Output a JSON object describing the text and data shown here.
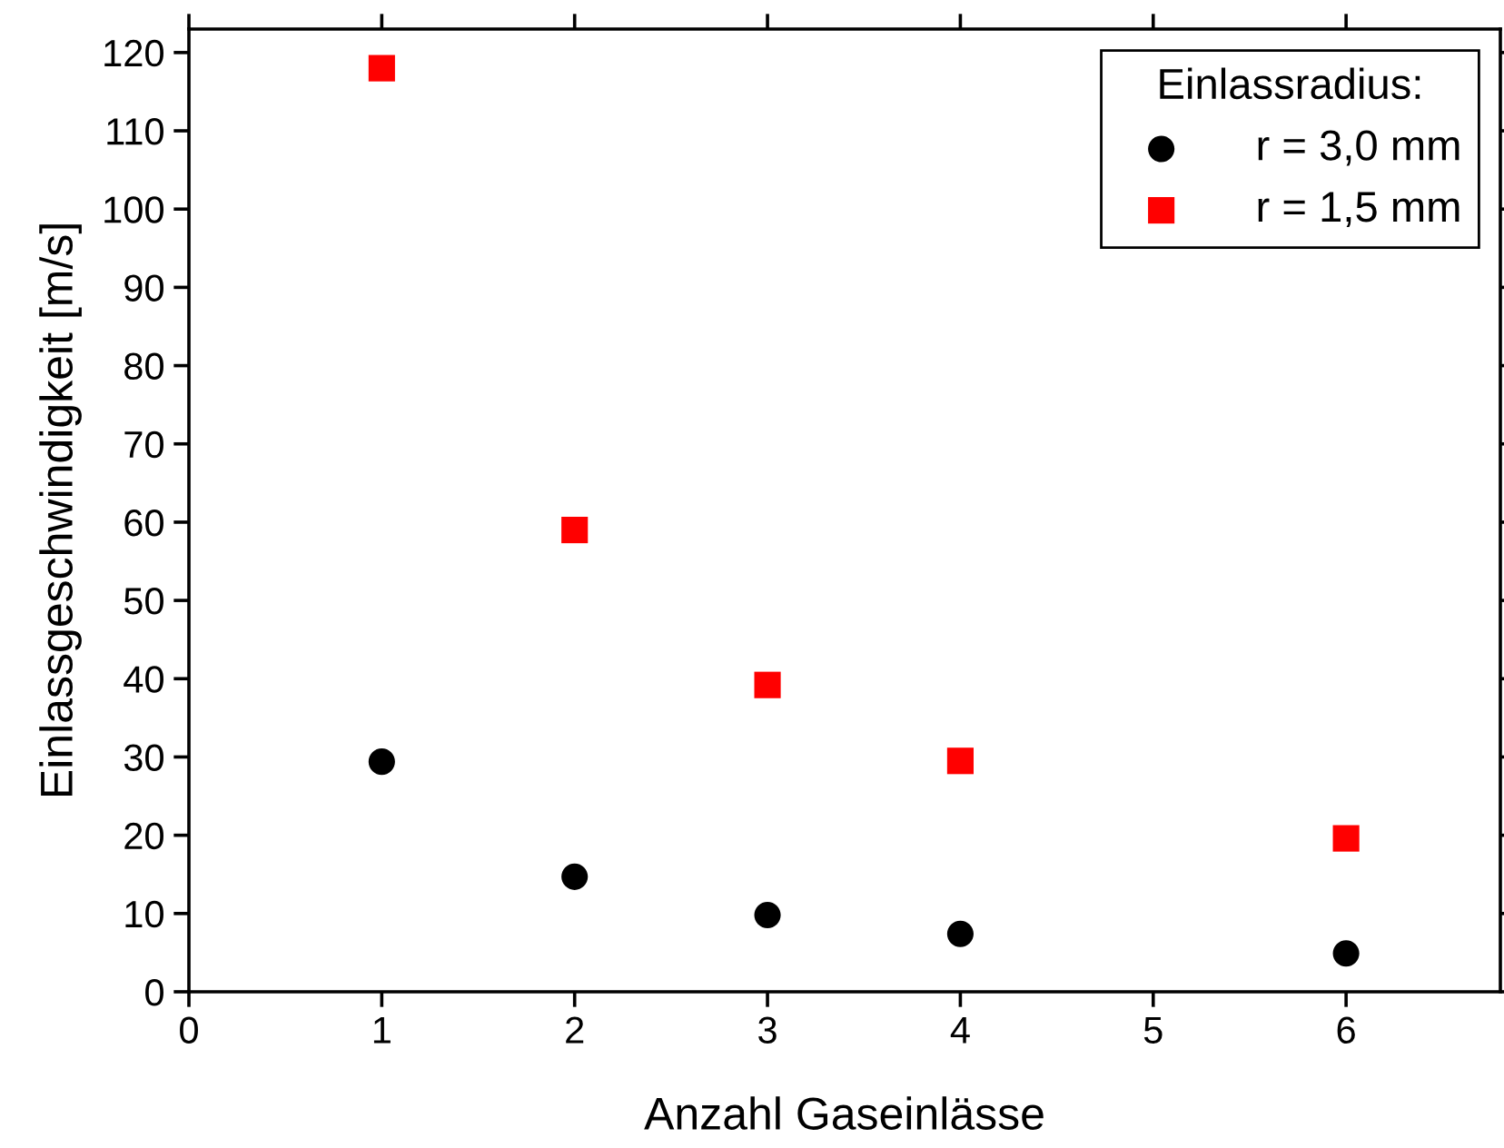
{
  "chart_data": {
    "type": "scatter",
    "xlabel": "Anzahl Gaseinlässe",
    "ylabel": "Einlassgeschwindigkeit [m/s]",
    "legend_title": "Einlassradius:",
    "legend": "top right",
    "grid": false,
    "x": [
      1,
      2,
      3,
      4,
      6
    ],
    "series": [
      {
        "name": "r = 3,0 mm",
        "color": "#000000",
        "marker": "circle",
        "values": [
          29.4,
          14.7,
          9.8,
          7.4,
          4.9
        ]
      },
      {
        "name": "r = 1,5 mm",
        "color": "#ff0000",
        "marker": "square",
        "values": [
          118,
          59,
          39.2,
          29.5,
          19.6
        ]
      }
    ],
    "xlim": [
      0,
      6.8
    ],
    "xticks": [
      0,
      1,
      2,
      3,
      4,
      5,
      6
    ],
    "ylim": [
      0,
      123
    ],
    "yticks": [
      0,
      10,
      20,
      30,
      40,
      50,
      60,
      70,
      80,
      90,
      100,
      110,
      120
    ]
  }
}
